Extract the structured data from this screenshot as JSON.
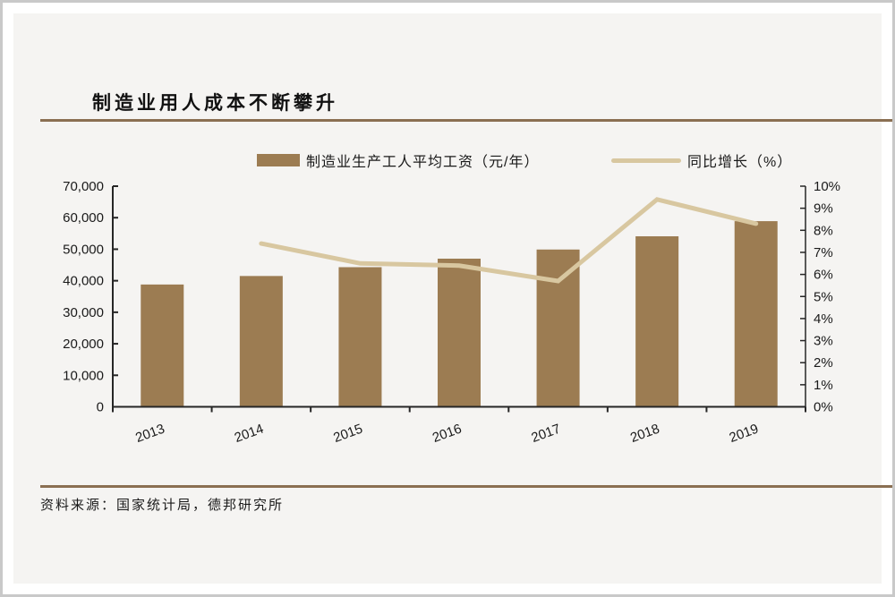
{
  "page": {
    "title": "制造业用人成本不断攀升",
    "source": "资料来源：国家统计局，德邦研究所"
  },
  "legend": {
    "bar_label": "制造业生产工人平均工资（元/年）",
    "line_label": "同比增长（%）"
  },
  "colors": {
    "bar": "#9c7c52",
    "line": "#d8c7a0",
    "axis": "#262626",
    "text": "#1a1a1a",
    "rule": "#8a6f52",
    "background": "#f5f4f2",
    "border": "#c9c9c9"
  },
  "chart_data": {
    "type": "combo (bar + line, dual axis)",
    "title": "制造业用人成本不断攀升",
    "categories": [
      "2013",
      "2014",
      "2015",
      "2016",
      "2017",
      "2018",
      "2019"
    ],
    "series": [
      {
        "name": "制造业生产工人平均工资（元/年）",
        "type": "bar",
        "axis": "left",
        "values": [
          38800,
          41500,
          44300,
          47000,
          49900,
          54100,
          58900
        ]
      },
      {
        "name": "同比增长（%）",
        "type": "line",
        "axis": "right",
        "values": [
          null,
          7.4,
          6.5,
          6.4,
          5.7,
          9.4,
          8.3
        ]
      }
    ],
    "left_axis": {
      "min": 0,
      "max": 70000,
      "step": 10000,
      "tick_labels": [
        "0",
        "10,000",
        "20,000",
        "30,000",
        "40,000",
        "50,000",
        "60,000",
        "70,000"
      ]
    },
    "right_axis": {
      "min": 0,
      "max": 10,
      "step": 1,
      "tick_labels": [
        "0%",
        "1%",
        "2%",
        "3%",
        "4%",
        "5%",
        "6%",
        "7%",
        "8%",
        "9%",
        "10%"
      ]
    },
    "legend_position": "top",
    "grid": false,
    "x_tick_label_rotation_deg": -20,
    "source": "资料来源：国家统计局，德邦研究所"
  }
}
